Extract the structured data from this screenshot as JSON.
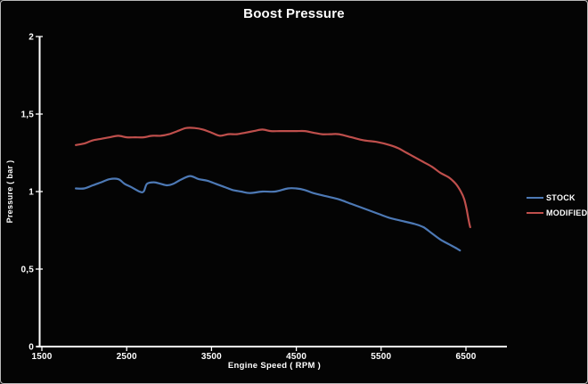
{
  "frame": {
    "background": "#040404",
    "border_color": "#b9b9b9"
  },
  "chart_data": {
    "type": "line",
    "title": "Boost Pressure",
    "xlabel": "Engine Speed ( RPM )",
    "ylabel": "Pressure ( bar )",
    "xlim": [
      1500,
      7000
    ],
    "ylim": [
      0,
      2
    ],
    "x_ticks": [
      1500,
      2500,
      3500,
      4500,
      5500,
      6500
    ],
    "x_tick_labels": [
      "1500",
      "2500",
      "3500",
      "4500",
      "5500",
      "6500"
    ],
    "y_ticks": [
      0,
      0.5,
      1,
      1.5,
      2
    ],
    "y_tick_labels": [
      "0",
      "0,5",
      "1",
      "1,5",
      "2"
    ],
    "grid": false,
    "plot_bg": "#000000",
    "axis_color": "#ffffff",
    "legend_position": "right-middle",
    "series": [
      {
        "name": "STOCK",
        "color": "#4d79b5",
        "points": [
          [
            1900,
            1.02
          ],
          [
            2000,
            1.02
          ],
          [
            2100,
            1.04
          ],
          [
            2200,
            1.06
          ],
          [
            2300,
            1.08
          ],
          [
            2400,
            1.08
          ],
          [
            2475,
            1.05
          ],
          [
            2550,
            1.03
          ],
          [
            2650,
            1.0
          ],
          [
            2700,
            1.0
          ],
          [
            2740,
            1.05
          ],
          [
            2820,
            1.06
          ],
          [
            2900,
            1.05
          ],
          [
            2975,
            1.04
          ],
          [
            3050,
            1.05
          ],
          [
            3150,
            1.08
          ],
          [
            3250,
            1.1
          ],
          [
            3350,
            1.08
          ],
          [
            3450,
            1.07
          ],
          [
            3550,
            1.05
          ],
          [
            3650,
            1.03
          ],
          [
            3750,
            1.01
          ],
          [
            3850,
            1.0
          ],
          [
            3950,
            0.99
          ],
          [
            4100,
            1.0
          ],
          [
            4250,
            1.0
          ],
          [
            4400,
            1.02
          ],
          [
            4500,
            1.02
          ],
          [
            4600,
            1.01
          ],
          [
            4700,
            0.99
          ],
          [
            4850,
            0.97
          ],
          [
            5000,
            0.95
          ],
          [
            5150,
            0.92
          ],
          [
            5300,
            0.89
          ],
          [
            5450,
            0.86
          ],
          [
            5600,
            0.83
          ],
          [
            5750,
            0.81
          ],
          [
            5900,
            0.79
          ],
          [
            6000,
            0.77
          ],
          [
            6100,
            0.73
          ],
          [
            6200,
            0.69
          ],
          [
            6300,
            0.66
          ],
          [
            6400,
            0.63
          ],
          [
            6430,
            0.62
          ]
        ]
      },
      {
        "name": "MODIFIED",
        "color": "#bf4f4c",
        "points": [
          [
            1900,
            1.3
          ],
          [
            2000,
            1.31
          ],
          [
            2100,
            1.33
          ],
          [
            2200,
            1.34
          ],
          [
            2300,
            1.35
          ],
          [
            2400,
            1.36
          ],
          [
            2500,
            1.35
          ],
          [
            2600,
            1.35
          ],
          [
            2700,
            1.35
          ],
          [
            2800,
            1.36
          ],
          [
            2900,
            1.36
          ],
          [
            3000,
            1.37
          ],
          [
            3100,
            1.39
          ],
          [
            3200,
            1.41
          ],
          [
            3300,
            1.41
          ],
          [
            3400,
            1.4
          ],
          [
            3500,
            1.38
          ],
          [
            3600,
            1.36
          ],
          [
            3700,
            1.37
          ],
          [
            3800,
            1.37
          ],
          [
            3900,
            1.38
          ],
          [
            4000,
            1.39
          ],
          [
            4100,
            1.4
          ],
          [
            4200,
            1.39
          ],
          [
            4300,
            1.39
          ],
          [
            4400,
            1.39
          ],
          [
            4500,
            1.39
          ],
          [
            4600,
            1.39
          ],
          [
            4700,
            1.38
          ],
          [
            4800,
            1.37
          ],
          [
            4900,
            1.37
          ],
          [
            5000,
            1.37
          ],
          [
            5150,
            1.35
          ],
          [
            5300,
            1.33
          ],
          [
            5450,
            1.32
          ],
          [
            5600,
            1.3
          ],
          [
            5700,
            1.28
          ],
          [
            5800,
            1.25
          ],
          [
            5900,
            1.22
          ],
          [
            6000,
            1.19
          ],
          [
            6100,
            1.16
          ],
          [
            6200,
            1.12
          ],
          [
            6300,
            1.09
          ],
          [
            6380,
            1.05
          ],
          [
            6440,
            1.0
          ],
          [
            6480,
            0.95
          ],
          [
            6510,
            0.88
          ],
          [
            6530,
            0.82
          ],
          [
            6550,
            0.77
          ]
        ]
      }
    ]
  }
}
